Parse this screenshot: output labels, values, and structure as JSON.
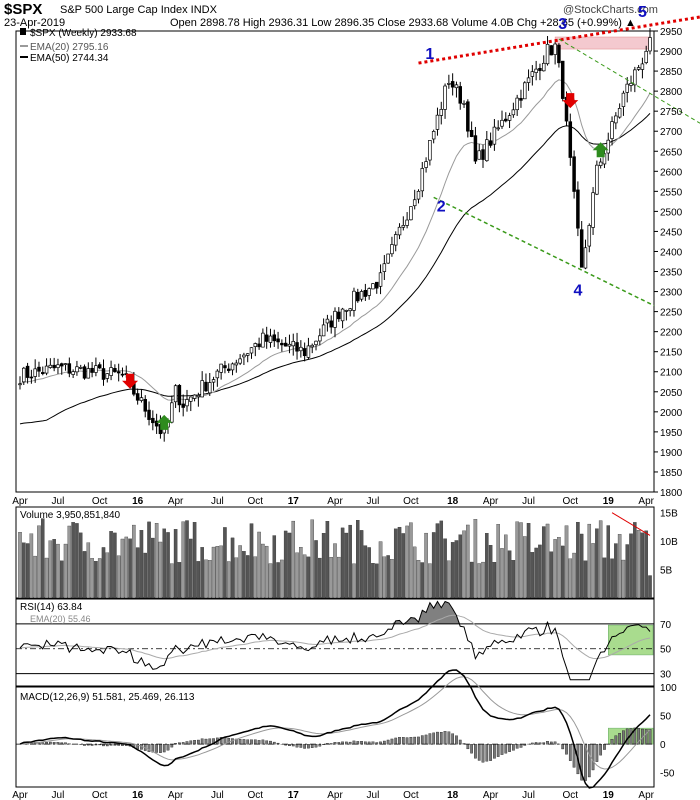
{
  "header": {
    "symbol": "$SPX",
    "name": "S&P 500 Large Cap Index INDX",
    "date": "23-Apr-2019",
    "ohlc_line": "Open 2898.78  High 2936.31  Low 2896.35  Close 2933.68  Volume 4.0B  Chg +28.65 (+0.99%) ▲",
    "brand": "@StockCharts.com"
  },
  "colors": {
    "up": "#ffffff",
    "down": "#000000",
    "ema20": "#9a9a9a",
    "ema50": "#000000",
    "wave_labels": "#1010c0",
    "trend_red": "#e00000",
    "trend_green": "#3a9a1a",
    "arrow_red": "#e00000",
    "arrow_green": "#2e8b1e",
    "volume_bar": "#777777",
    "rsi_fill": "#808080",
    "highlight_green": "#a9dc8e",
    "highlight_pink": "#f4c9cf"
  },
  "chart_data": [
    {
      "type": "candlestick",
      "title": "$SPX (Weekly) 2933.68",
      "legend": [
        "$SPX (Weekly) 2933.68",
        "EMA(20) 2795.16",
        "EMA(50) 2744.34"
      ],
      "legend_placement": "top-left",
      "ylim": [
        1800,
        2950
      ],
      "y_ticks": [
        1800,
        1850,
        1900,
        1950,
        2000,
        2050,
        2100,
        2150,
        2200,
        2250,
        2300,
        2350,
        2400,
        2450,
        2500,
        2550,
        2600,
        2650,
        2700,
        2750,
        2800,
        2850,
        2900,
        2950
      ],
      "x_ticks": [
        "Apr",
        "Jul",
        "Oct",
        "16",
        "Apr",
        "Jul",
        "Oct",
        "17",
        "Apr",
        "Jul",
        "Oct",
        "18",
        "Apr",
        "Jul",
        "Oct",
        "19",
        "Apr"
      ],
      "grid": false,
      "anchors": {
        "x": [
          0,
          10,
          27,
          38,
          41,
          43,
          52,
          64,
          75,
          85,
          95,
          105,
          113,
          117,
          120,
          127,
          139,
          141,
          143,
          148,
          152,
          159,
          164,
          166
        ],
        "close": [
          2090,
          2110,
          2090,
          1940,
          2050,
          2020,
          2095,
          2180,
          2150,
          2260,
          2330,
          2570,
          2830,
          2770,
          2620,
          2720,
          2900,
          2910,
          2800,
          2350,
          2600,
          2790,
          2880,
          2933.68
        ]
      },
      "ema20_last": 2795.16,
      "ema50_last": 2744.34,
      "wave_labels": [
        {
          "label": "1",
          "x": 108,
          "price": 2880
        },
        {
          "label": "2",
          "x": 111,
          "price": 2500
        },
        {
          "label": "3",
          "x": 143,
          "price": 2955
        },
        {
          "label": "4",
          "x": 147,
          "price": 2290
        },
        {
          "label": "5",
          "x": 164,
          "price": 2985
        }
      ],
      "arrows": [
        {
          "color": "red",
          "direction": "down",
          "x": 29,
          "price": 2060
        },
        {
          "color": "green",
          "direction": "up",
          "x": 38,
          "price": 1990
        },
        {
          "color": "red",
          "direction": "down",
          "x": 145,
          "price": 2760
        },
        {
          "color": "green",
          "direction": "up",
          "x": 153,
          "price": 2670
        }
      ]
    },
    {
      "type": "bar",
      "title": "Volume 3,950,851,840",
      "ylim": [
        0,
        16000000000
      ],
      "y_ticks": [
        "5B",
        "10B",
        "15B"
      ]
    },
    {
      "type": "line",
      "title": "RSI(14) 63.84",
      "legend": [
        "RSI(14) 63.84",
        "EMA(20) 55.46"
      ],
      "ylim": [
        20,
        90
      ],
      "y_ticks": [
        70,
        50,
        30
      ]
    },
    {
      "type": "line",
      "title": "MACD(12,26,9) 51.581, 25.469, 26.113",
      "ylim": [
        -75,
        100
      ],
      "y_ticks": [
        100,
        50,
        0,
        -50
      ]
    }
  ]
}
